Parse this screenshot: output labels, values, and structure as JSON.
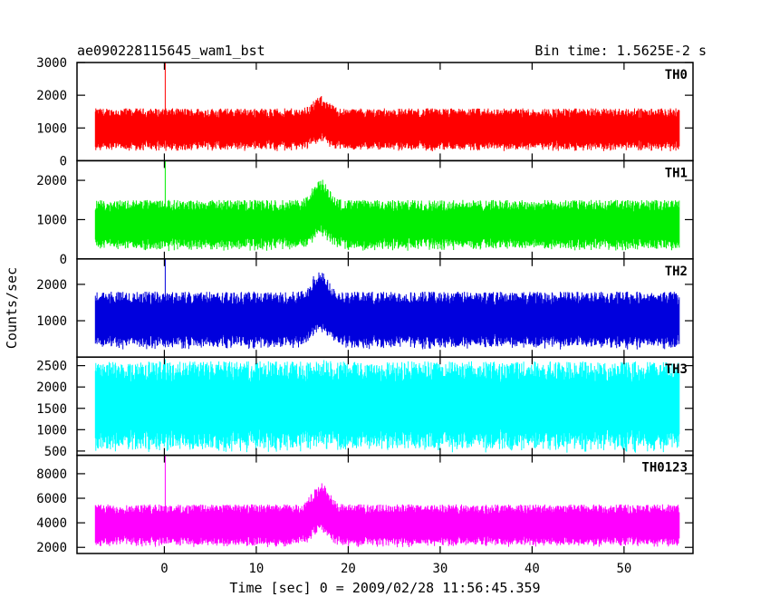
{
  "header": {
    "title": "ae090228115645_wam1_bst",
    "bin_time": "Bin time: 1.5625E-2 s"
  },
  "chart_data": {
    "type": "line",
    "title": "ae090228115645_wam1_bst",
    "xlabel": "Time [sec] 0 = 2009/02/28 11:56:45.359",
    "ylabel": "Counts/sec",
    "xlim": [
      -9.5,
      57.5
    ],
    "x_ticks": [
      0,
      10,
      20,
      30,
      40,
      50
    ],
    "x_tick_labels": [
      "0",
      "10",
      "20",
      "30",
      "40",
      "50"
    ],
    "x_range": [
      -7.5,
      56
    ],
    "grid": false,
    "panels": [
      {
        "name": "TH0",
        "color": "#ff0000",
        "ylim": [
          0,
          3000
        ],
        "yticks": [
          0,
          1000,
          2000,
          3000
        ],
        "ytick_labels": [
          "0",
          "1000",
          "2000",
          "3000"
        ],
        "baseline": [
          280,
          1600
        ],
        "peak_time": 0.1,
        "peak_value": 3000,
        "bump_time": 17.0,
        "bump_value": 2000
      },
      {
        "name": "TH1",
        "color": "#00ee00",
        "ylim": [
          0,
          2500
        ],
        "yticks": [
          0,
          1000,
          2000
        ],
        "ytick_labels": [
          "0",
          "1000",
          "2000"
        ],
        "baseline": [
          200,
          1500
        ],
        "peak_time": 0.1,
        "peak_value": 2500,
        "bump_time": 17.0,
        "bump_value": 2100
      },
      {
        "name": "TH2",
        "color": "#0000dd",
        "ylim": [
          0,
          2700
        ],
        "yticks": [
          1000,
          2000
        ],
        "ytick_labels": [
          "1000",
          "2000"
        ],
        "baseline": [
          200,
          1800
        ],
        "peak_time": 0.1,
        "peak_value": 2700,
        "bump_time": 17.0,
        "bump_value": 2500
      },
      {
        "name": "TH3",
        "color": "#00ffff",
        "ylim": [
          400,
          2700
        ],
        "yticks": [
          500,
          1000,
          1500,
          2000,
          2500
        ],
        "ytick_labels": [
          "500",
          "1000",
          "1500",
          "2000",
          "2500"
        ],
        "baseline": [
          450,
          2600
        ],
        "peak_time": 0.1,
        "peak_value": 2650,
        "bump_time": 17.0,
        "bump_value": 2650
      },
      {
        "name": "TH0123",
        "color": "#ff00ff",
        "ylim": [
          1500,
          9500
        ],
        "yticks": [
          2000,
          4000,
          6000,
          8000
        ],
        "ytick_labels": [
          "2000",
          "4000",
          "6000",
          "8000"
        ],
        "baseline": [
          2000,
          5500
        ],
        "peak_time": 0.1,
        "peak_value": 9500,
        "bump_time": 17.0,
        "bump_value": 7500
      }
    ]
  }
}
